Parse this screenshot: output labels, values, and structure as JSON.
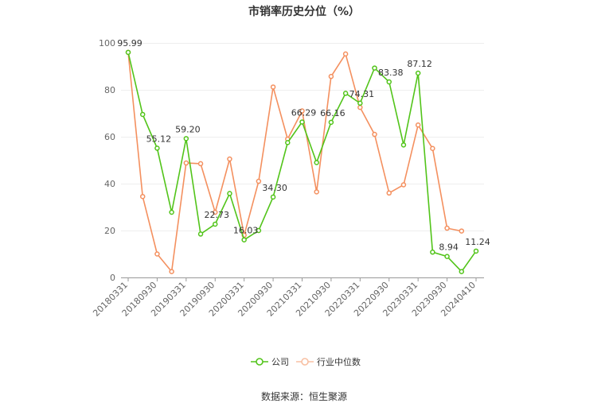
{
  "chart_data": {
    "type": "line",
    "title": "市销率历史分位（%）",
    "source": "数据来源：恒生聚源",
    "ylim": [
      0,
      100
    ],
    "yticks": [
      0,
      20,
      40,
      60,
      80,
      100
    ],
    "x_tick_labels": [
      "20180331",
      "20180930",
      "20190331",
      "20190930",
      "20200331",
      "20200930",
      "20210331",
      "20210930",
      "20220331",
      "20220930",
      "20230331",
      "20230930",
      "20240410"
    ],
    "x": [
      "20180331",
      "20180630",
      "20180930",
      "20181231",
      "20190331",
      "20190630",
      "20190930",
      "20191231",
      "20200331",
      "20200630",
      "20200930",
      "20201231",
      "20210331",
      "20210630",
      "20210930",
      "20211231",
      "20220331",
      "20220630",
      "20220930",
      "20221231",
      "20230331",
      "20230630",
      "20230930",
      "20231231",
      "20240410"
    ],
    "series": [
      {
        "name": "公司",
        "color": "#52c41a",
        "values": [
          95.99,
          69.5,
          55.12,
          27.8,
          59.2,
          18.5,
          22.73,
          35.8,
          16.03,
          20.0,
          34.3,
          57.5,
          66.29,
          49.0,
          66.16,
          78.5,
          74.31,
          89.3,
          83.38,
          56.5,
          87.12,
          10.8,
          8.94,
          2.5,
          11.24
        ],
        "labels": {
          "0": "95.99",
          "2": "55.12",
          "4": "59.20",
          "6": "22.73",
          "8": "16.03",
          "10": "34.30",
          "12": "66.29",
          "14": "66.16",
          "16": "74.31",
          "18": "83.38",
          "20": "87.12",
          "22": "8.94",
          "24": "11.24"
        }
      },
      {
        "name": "行业中位数",
        "color": "#f4905f",
        "values": [
          95.99,
          34.5,
          10.0,
          2.5,
          48.8,
          48.5,
          27.8,
          50.5,
          18.0,
          41.0,
          81.2,
          59.0,
          71.0,
          36.5,
          85.7,
          95.3,
          72.5,
          61.0,
          36.0,
          39.5,
          65.0,
          55.0,
          21.0,
          19.8,
          null
        ]
      }
    ],
    "legend_position": "bottom"
  }
}
